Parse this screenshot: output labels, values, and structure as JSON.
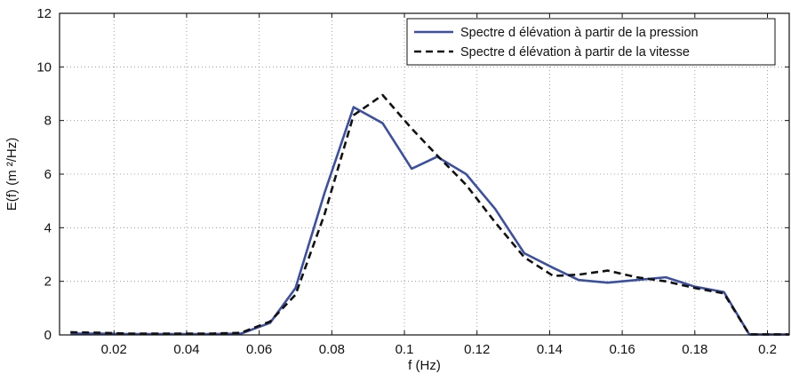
{
  "chart_data": {
    "type": "line",
    "xlabel": "f (Hz)",
    "ylabel": "E(f) (m ²/Hz)",
    "xlim": [
      0.005,
      0.206
    ],
    "ylim": [
      0,
      12
    ],
    "xticks": [
      0.02,
      0.04,
      0.06,
      0.08,
      0.1,
      0.12,
      0.14,
      0.16,
      0.18,
      0.2
    ],
    "xtick_labels": [
      "0.02",
      "0.04",
      "0.06",
      "0.08",
      "0.1",
      "0.12",
      "0.14",
      "0.16",
      "0.18",
      "0.2"
    ],
    "yticks": [
      0,
      2,
      4,
      6,
      8,
      10,
      12
    ],
    "ytick_labels": [
      "0",
      "2",
      "4",
      "6",
      "8",
      "10",
      "12"
    ],
    "grid": true,
    "legend_position": "top-right",
    "series": [
      {
        "name": "Spectre d élévation à partir de la pression",
        "style": "solid",
        "color": "#3b4fa3",
        "x": [
          0.008,
          0.016,
          0.024,
          0.031,
          0.039,
          0.047,
          0.055,
          0.063,
          0.07,
          0.078,
          0.086,
          0.094,
          0.102,
          0.109,
          0.117,
          0.125,
          0.133,
          0.141,
          0.148,
          0.156,
          0.164,
          0.172,
          0.18,
          0.188,
          0.195,
          0.203,
          0.206
        ],
        "y": [
          0.05,
          0.05,
          0.03,
          0.03,
          0.03,
          0.03,
          0.05,
          0.45,
          1.75,
          5.3,
          8.5,
          7.9,
          6.2,
          6.65,
          6.0,
          4.7,
          3.05,
          2.5,
          2.05,
          1.95,
          2.05,
          2.15,
          1.8,
          1.6,
          0.02,
          0.02,
          0.02
        ]
      },
      {
        "name": "Spectre d élévation à partir de la vitesse",
        "style": "dashed",
        "color": "#111111",
        "x": [
          0.008,
          0.016,
          0.024,
          0.031,
          0.039,
          0.047,
          0.055,
          0.063,
          0.07,
          0.078,
          0.086,
          0.094,
          0.102,
          0.109,
          0.117,
          0.125,
          0.133,
          0.141,
          0.148,
          0.156,
          0.164,
          0.172,
          0.18,
          0.188,
          0.195,
          0.203,
          0.206
        ],
        "y": [
          0.1,
          0.08,
          0.05,
          0.05,
          0.05,
          0.05,
          0.08,
          0.5,
          1.5,
          4.5,
          8.2,
          8.95,
          7.7,
          6.7,
          5.6,
          4.2,
          2.9,
          2.2,
          2.25,
          2.4,
          2.15,
          2.0,
          1.75,
          1.55,
          0.02,
          0.02,
          0.02
        ]
      }
    ]
  },
  "colors": {
    "series_pressure": "#3b4fa3",
    "series_velocity": "#111111",
    "grid": "#8a8a8a",
    "axes": "#111111"
  }
}
